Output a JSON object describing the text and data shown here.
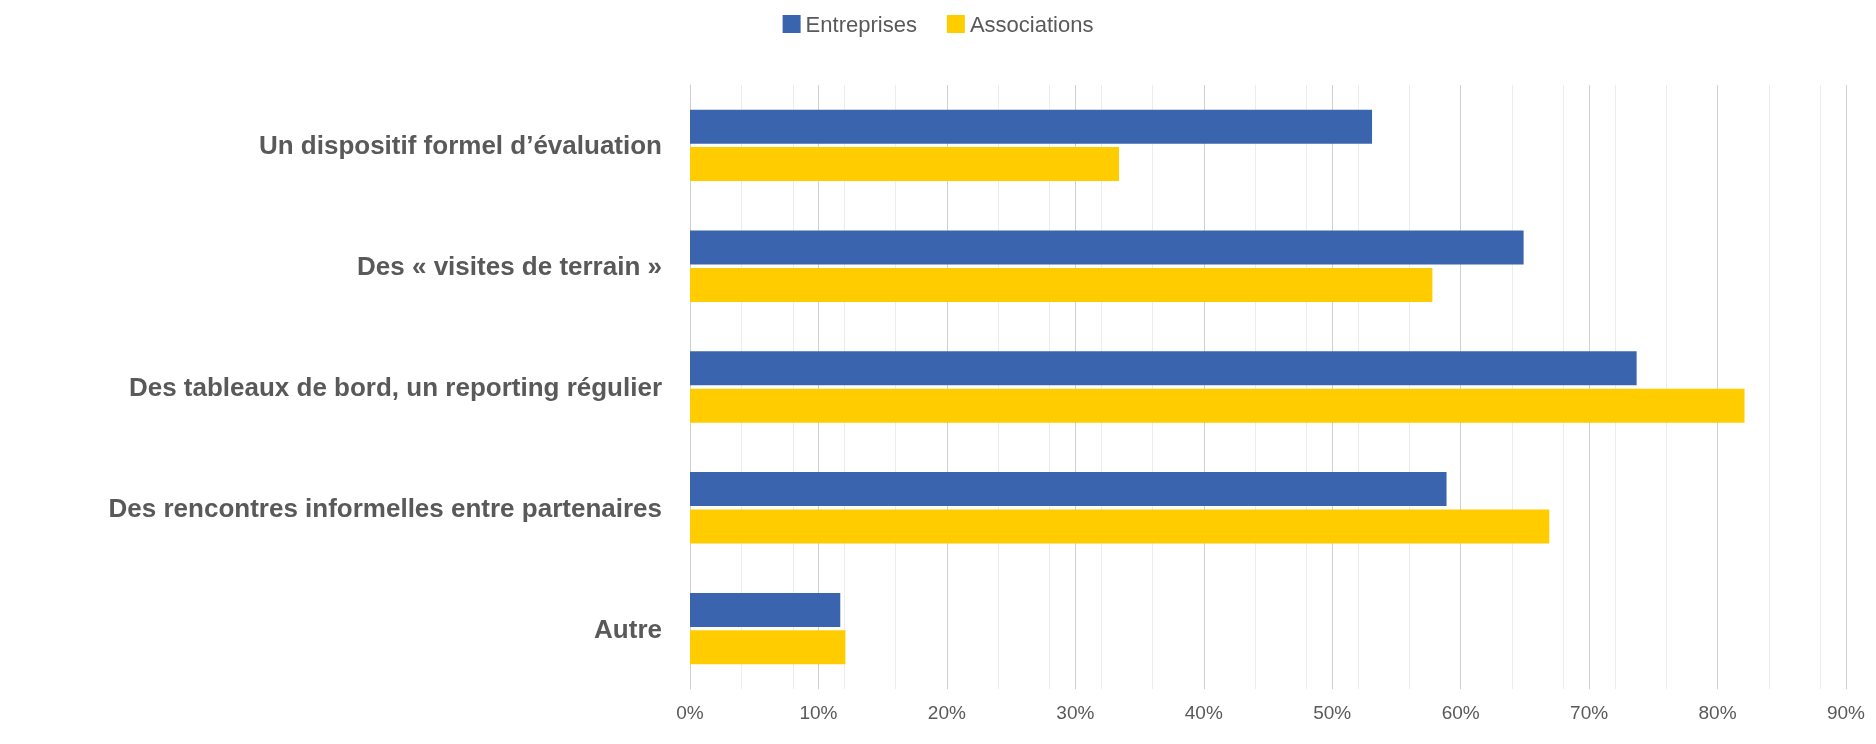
{
  "chart_data": {
    "type": "bar",
    "orientation": "horizontal",
    "categories": [
      "Un dispositif formel d’évaluation",
      "Des « visites de terrain »",
      "Des tableaux de bord, un reporting régulier",
      "Des rencontres informelles entre partenaires",
      "Autre"
    ],
    "series": [
      {
        "name": "Entreprises",
        "color": "#3a64ad",
        "values": [
          53.1,
          64.9,
          73.7,
          58.9,
          11.7
        ]
      },
      {
        "name": "Associations",
        "color": "#ffcc00",
        "values": [
          33.4,
          57.8,
          82.1,
          66.9,
          12.1
        ]
      }
    ],
    "xlim": [
      0,
      90
    ],
    "xticks": [
      {
        "value": 0,
        "label": "0%"
      },
      {
        "value": 10,
        "label": "10%"
      },
      {
        "value": 20,
        "label": "20%"
      },
      {
        "value": 30,
        "label": "30%"
      },
      {
        "value": 40,
        "label": "40%"
      },
      {
        "value": 50,
        "label": "50%"
      },
      {
        "value": 60,
        "label": "60%"
      },
      {
        "value": 70,
        "label": "70%"
      },
      {
        "value": 80,
        "label": "80%"
      },
      {
        "value": 90,
        "label": "90%"
      }
    ],
    "grid": "x",
    "legend": "top"
  }
}
